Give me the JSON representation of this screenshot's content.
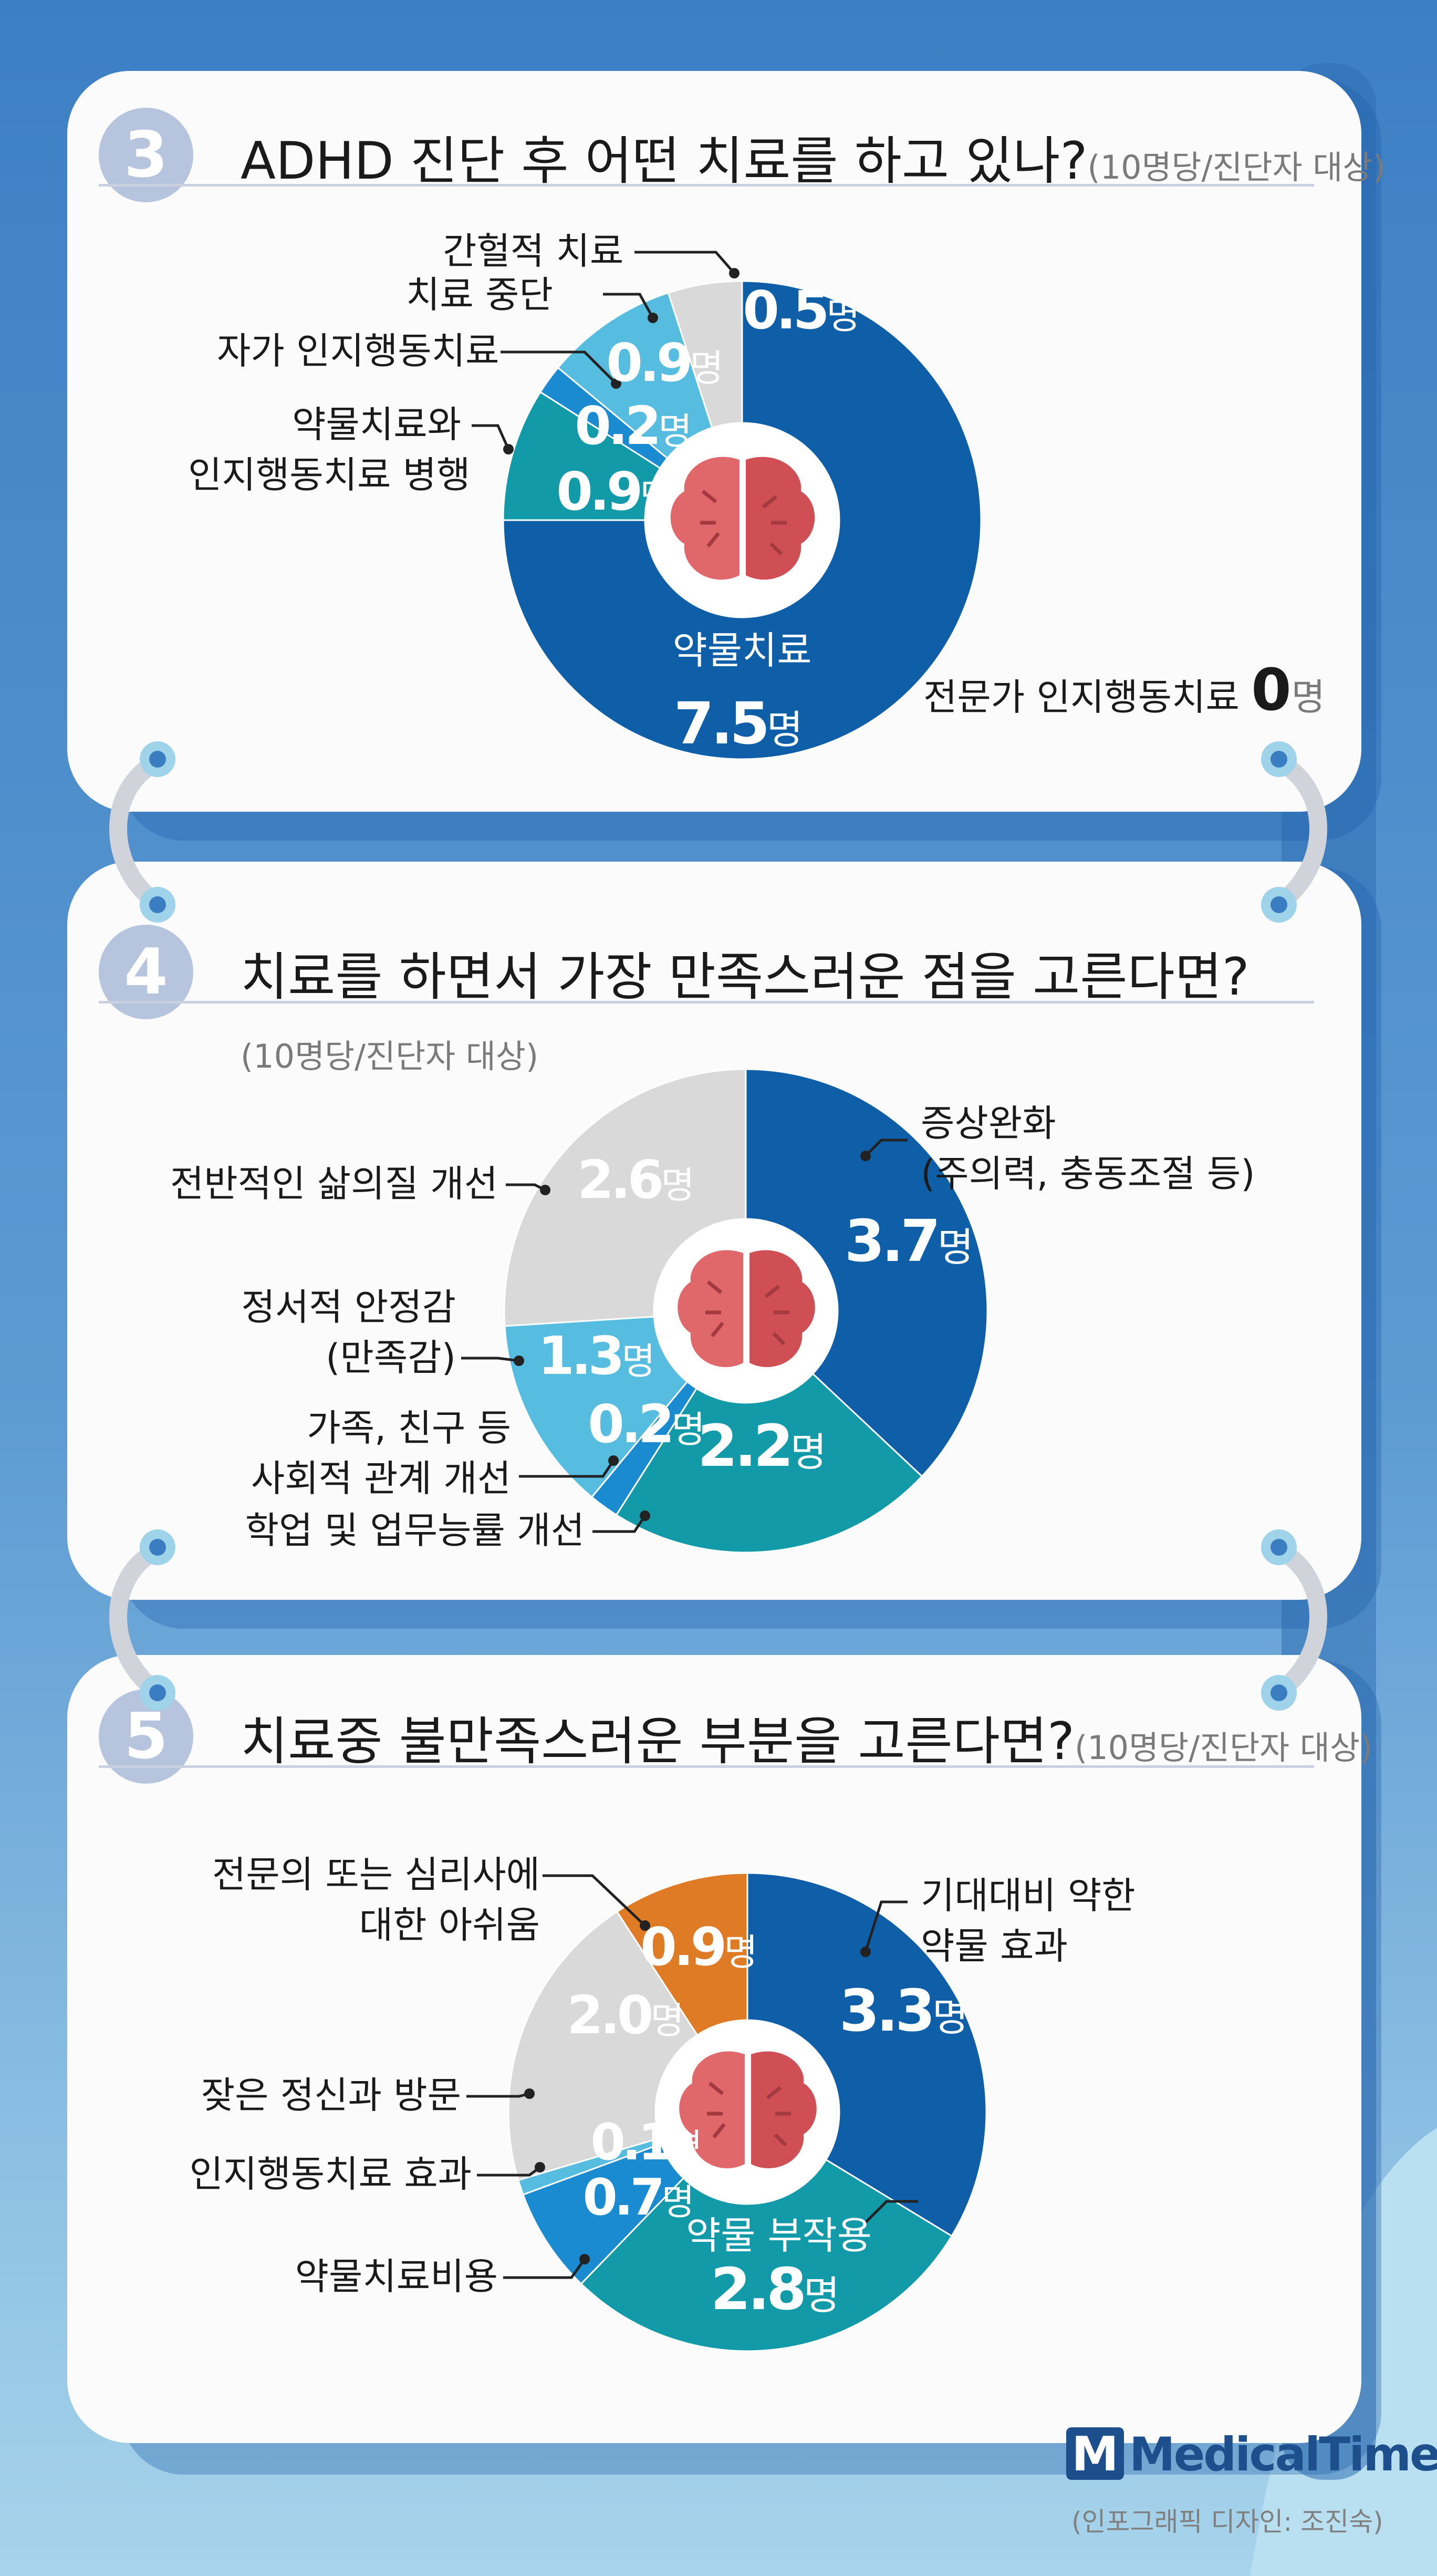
{
  "colors": {
    "navy": "#0e5ea8",
    "teal": "#129aa8",
    "sky": "#56bde0",
    "mid_blue": "#1a8bd0",
    "gray": "#d9d9d9",
    "orange": "#e07b25",
    "background": "#4e8ccc",
    "brand": "#1c4f8c"
  },
  "icons": [
    "brain-icon",
    "ring-binder-icon",
    "medicaltimes-logo-icon"
  ],
  "chart_data": [
    {
      "type": "pie",
      "number": "3",
      "title": "ADHD 진단 후 어떤 치료를 하고 있나?",
      "subtitle": "(10명당/진단자 대상)",
      "unit": "명",
      "slices": [
        {
          "label": "약물치료",
          "value": 7.5,
          "value_text": "7.5",
          "color": "#0e5ea8"
        },
        {
          "label": "약물치료와 인지행동치료 병행",
          "label_lines": [
            "약물치료와",
            "인지행동치료 병행"
          ],
          "value": 0.9,
          "value_text": "0.9",
          "color": "#129aa8"
        },
        {
          "label": "자가 인지행동치료",
          "value": 0.2,
          "value_text": "0.2",
          "color": "#1a8bd0"
        },
        {
          "label": "치료 중단",
          "value": 0.9,
          "value_text": "0.9",
          "color": "#56bde0"
        },
        {
          "label": "간헐적 치료",
          "value": 0.5,
          "value_text": "0.5",
          "color": "#d9d9d9"
        }
      ],
      "note_label": "전문가 인지행동치료",
      "note_value": "0",
      "note_unit": "명"
    },
    {
      "type": "pie",
      "number": "4",
      "title": "치료를 하면서 가장 만족스러운 점을 고른다면?",
      "subtitle": "(10명당/진단자 대상)",
      "unit": "명",
      "slices": [
        {
          "label": "증상완화 (주의력, 충동조절 등)",
          "label_lines": [
            "증상완화",
            "(주의력, 충동조절 등)"
          ],
          "value": 3.7,
          "value_text": "3.7",
          "color": "#0e5ea8"
        },
        {
          "label": "학업 및 업무능률 개선",
          "value": 2.2,
          "value_text": "2.2",
          "color": "#129aa8"
        },
        {
          "label": "가족, 친구 등 사회적 관계 개선",
          "label_lines": [
            "가족, 친구 등",
            "사회적 관계 개선"
          ],
          "value": 0.2,
          "value_text": "0.2",
          "color": "#1a8bd0"
        },
        {
          "label": "정서적 안정감 (만족감)",
          "label_lines": [
            "정서적 안정감",
            "(만족감)"
          ],
          "value": 1.3,
          "value_text": "1.3",
          "color": "#56bde0"
        },
        {
          "label": "전반적인 삶의질 개선",
          "value": 2.6,
          "value_text": "2.6",
          "color": "#d9d9d9"
        }
      ]
    },
    {
      "type": "pie",
      "number": "5",
      "title": "치료중 불만족스러운 부분을 고른다면?",
      "subtitle": "(10명당/진단자 대상)",
      "unit": "명",
      "slices": [
        {
          "label": "기대대비 약한 약물 효과",
          "label_lines": [
            "기대대비 약한",
            "약물 효과"
          ],
          "value": 3.3,
          "value_text": "3.3",
          "color": "#0e5ea8"
        },
        {
          "label": "약물 부작용",
          "value": 2.8,
          "value_text": "2.8",
          "color": "#129aa8"
        },
        {
          "label": "약물치료비용",
          "value": 0.7,
          "value_text": "0.7",
          "color": "#1a8bd0"
        },
        {
          "label": "인지행동치료 효과",
          "value": 0.1,
          "value_text": "0.1",
          "color": "#56bde0"
        },
        {
          "label": "잦은 정신과 방문",
          "value": 2.0,
          "value_text": "2.0",
          "color": "#d9d9d9"
        },
        {
          "label": "전문의 또는 심리사에 대한 아쉬움",
          "label_lines": [
            "전문의 또는 심리사에",
            "대한 아쉬움"
          ],
          "value": 0.9,
          "value_text": "0.9",
          "color": "#e07b25"
        }
      ]
    }
  ],
  "brand": {
    "name": "MedicalTimes",
    "letter": "M",
    "credit": "(인포그래픽 디자인: 조진숙)"
  }
}
